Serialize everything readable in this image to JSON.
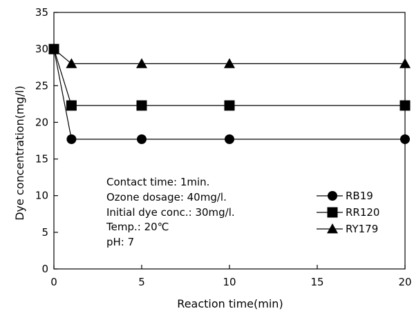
{
  "chart_data": {
    "type": "line",
    "xlabel": "Reaction time(min)",
    "ylabel": "Dye concentration(mg/l)",
    "xlim": [
      0,
      20
    ],
    "ylim": [
      0,
      35
    ],
    "xticks": [
      0,
      5,
      10,
      15,
      20
    ],
    "yticks": [
      0,
      5,
      10,
      15,
      20,
      25,
      30,
      35
    ],
    "grid": false,
    "legend_position": "bottom-right",
    "annotations": [
      "Contact time: 1min.",
      "Ozone dosage: 40mg/l.",
      "Initial dye conc.: 30mg/l.",
      "Temp.: 20℃",
      "pH: 7"
    ],
    "series": [
      {
        "name": "RB19",
        "marker": "circle",
        "x": [
          0,
          1,
          5,
          10,
          20
        ],
        "y": [
          30,
          17.7,
          17.7,
          17.7,
          17.7
        ]
      },
      {
        "name": "RR120",
        "marker": "square",
        "x": [
          0,
          1,
          5,
          10,
          20
        ],
        "y": [
          30,
          22.3,
          22.3,
          22.3,
          22.3
        ]
      },
      {
        "name": "RY179",
        "marker": "triangle",
        "x": [
          0,
          1,
          5,
          10,
          20
        ],
        "y": [
          30,
          28,
          28,
          28,
          28
        ]
      }
    ]
  }
}
